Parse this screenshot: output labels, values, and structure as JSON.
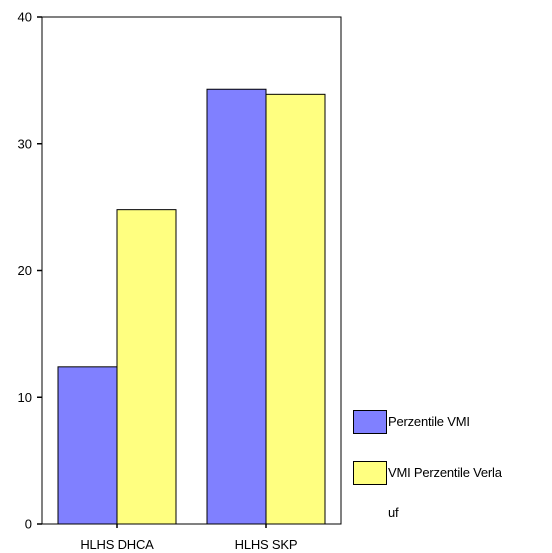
{
  "chart_data": {
    "type": "bar",
    "categories": [
      "HLHS DHCA",
      "HLHS SKP"
    ],
    "series": [
      {
        "name": "Perzentile VMI",
        "color": "#8080ff",
        "values": [
          12.4,
          34.3
        ]
      },
      {
        "name": "VMI Perzentile Verla uf",
        "color": "#ffff80",
        "values": [
          24.8,
          33.9
        ]
      }
    ],
    "yticks": [
      0,
      10,
      20,
      30,
      40
    ],
    "ylim": [
      0,
      40
    ],
    "xlabel": "",
    "ylabel": "",
    "title": "",
    "legend_position": "right",
    "grid": false
  },
  "legend": {
    "item1_label": "Perzentile VMI",
    "item2_label": "VMI Perzentile Verla",
    "item2_label_cont": "uf"
  }
}
